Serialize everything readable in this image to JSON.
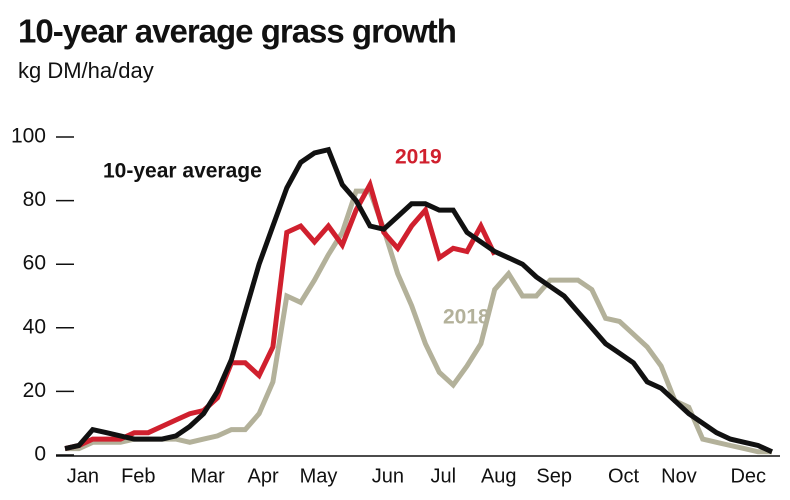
{
  "chart_data": {
    "type": "line",
    "title": "10-year average grass growth",
    "subtitle": "kg DM/ha/day",
    "categories": [
      null,
      "Jan",
      null,
      null,
      null,
      "Feb",
      null,
      null,
      null,
      null,
      "Mar",
      null,
      null,
      null,
      "Apr",
      null,
      null,
      null,
      "May",
      null,
      null,
      null,
      null,
      "Jun",
      null,
      null,
      null,
      "Jul",
      null,
      null,
      null,
      "Aug",
      null,
      null,
      null,
      "Sep",
      null,
      null,
      null,
      null,
      "Oct",
      null,
      null,
      null,
      "Nov",
      null,
      null,
      null,
      null,
      "Dec",
      null,
      null
    ],
    "series": [
      {
        "name": "10-year average",
        "color": "#111111",
        "values": [
          2,
          3,
          8,
          7,
          6,
          5,
          5,
          5,
          6,
          9,
          13,
          20,
          30,
          45,
          60,
          72,
          84,
          92,
          95,
          96,
          85,
          80,
          72,
          71,
          75,
          79,
          79,
          77,
          77,
          70,
          67,
          64,
          62,
          60,
          56,
          53,
          50,
          45,
          40,
          35,
          32,
          29,
          23,
          21,
          17,
          13,
          10,
          7,
          5,
          4,
          3,
          1
        ]
      },
      {
        "name": "2019",
        "color": "#d0202e",
        "values": [
          2,
          3,
          5,
          5,
          5,
          7,
          7,
          9,
          11,
          13,
          14,
          18,
          29,
          29,
          25,
          34,
          70,
          72,
          67,
          72,
          66,
          77,
          85,
          70,
          65,
          72,
          77,
          62,
          65,
          64,
          72,
          63,
          null,
          null,
          null,
          null,
          null,
          null,
          null,
          null,
          null,
          null,
          null,
          null,
          null,
          null,
          null,
          null,
          null,
          null,
          null,
          null
        ]
      },
      {
        "name": "2018",
        "color": "#b3b19a",
        "values": [
          2,
          2,
          4,
          4,
          4,
          5,
          5,
          5,
          5,
          4,
          5,
          6,
          8,
          8,
          13,
          23,
          50,
          48,
          55,
          63,
          70,
          83,
          83,
          71,
          57,
          47,
          35,
          26,
          22,
          28,
          35,
          52,
          57,
          50,
          50,
          55,
          55,
          55,
          52,
          43,
          42,
          38,
          34,
          28,
          17,
          15,
          5,
          4,
          3,
          2,
          1,
          1
        ]
      }
    ],
    "ylim": [
      0,
      100
    ],
    "yticks": [
      0,
      20,
      40,
      60,
      80,
      100
    ]
  }
}
